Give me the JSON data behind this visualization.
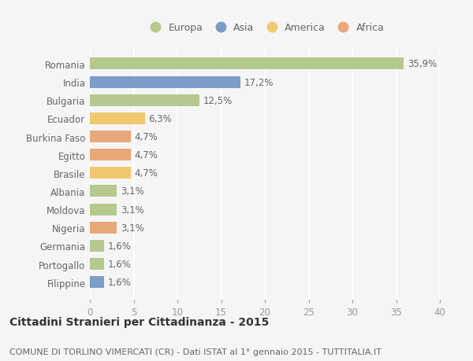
{
  "categories": [
    "Romania",
    "India",
    "Bulgaria",
    "Ecuador",
    "Burkina Faso",
    "Egitto",
    "Brasile",
    "Albania",
    "Moldova",
    "Nigeria",
    "Germania",
    "Portogallo",
    "Filippine"
  ],
  "values": [
    35.9,
    17.2,
    12.5,
    6.3,
    4.7,
    4.7,
    4.7,
    3.1,
    3.1,
    3.1,
    1.6,
    1.6,
    1.6
  ],
  "labels": [
    "35,9%",
    "17,2%",
    "12,5%",
    "6,3%",
    "4,7%",
    "4,7%",
    "4,7%",
    "3,1%",
    "3,1%",
    "3,1%",
    "1,6%",
    "1,6%",
    "1,6%"
  ],
  "colors": [
    "#b5c98e",
    "#7b9dc7",
    "#b5c98e",
    "#f0c96e",
    "#e8a87c",
    "#e8a87c",
    "#f0c96e",
    "#b5c98e",
    "#b5c98e",
    "#e8a87c",
    "#b5c98e",
    "#b5c98e",
    "#7b9dc7"
  ],
  "legend_labels": [
    "Europa",
    "Asia",
    "America",
    "Africa"
  ],
  "legend_colors": [
    "#b5c98e",
    "#7b9dc7",
    "#f0c96e",
    "#e8a87c"
  ],
  "xlim": [
    0,
    40
  ],
  "xticks": [
    0,
    5,
    10,
    15,
    20,
    25,
    30,
    35,
    40
  ],
  "title": "Cittadini Stranieri per Cittadinanza - 2015",
  "subtitle": "COMUNE DI TORLINO VIMERCATI (CR) - Dati ISTAT al 1° gennaio 2015 - TUTTITALIA.IT",
  "bg_color": "#f5f5f5",
  "grid_color": "#ffffff",
  "bar_height": 0.65,
  "label_fontsize": 8.5,
  "ytick_fontsize": 8.5,
  "xtick_fontsize": 8.5,
  "title_fontsize": 10,
  "subtitle_fontsize": 8,
  "legend_fontsize": 9
}
